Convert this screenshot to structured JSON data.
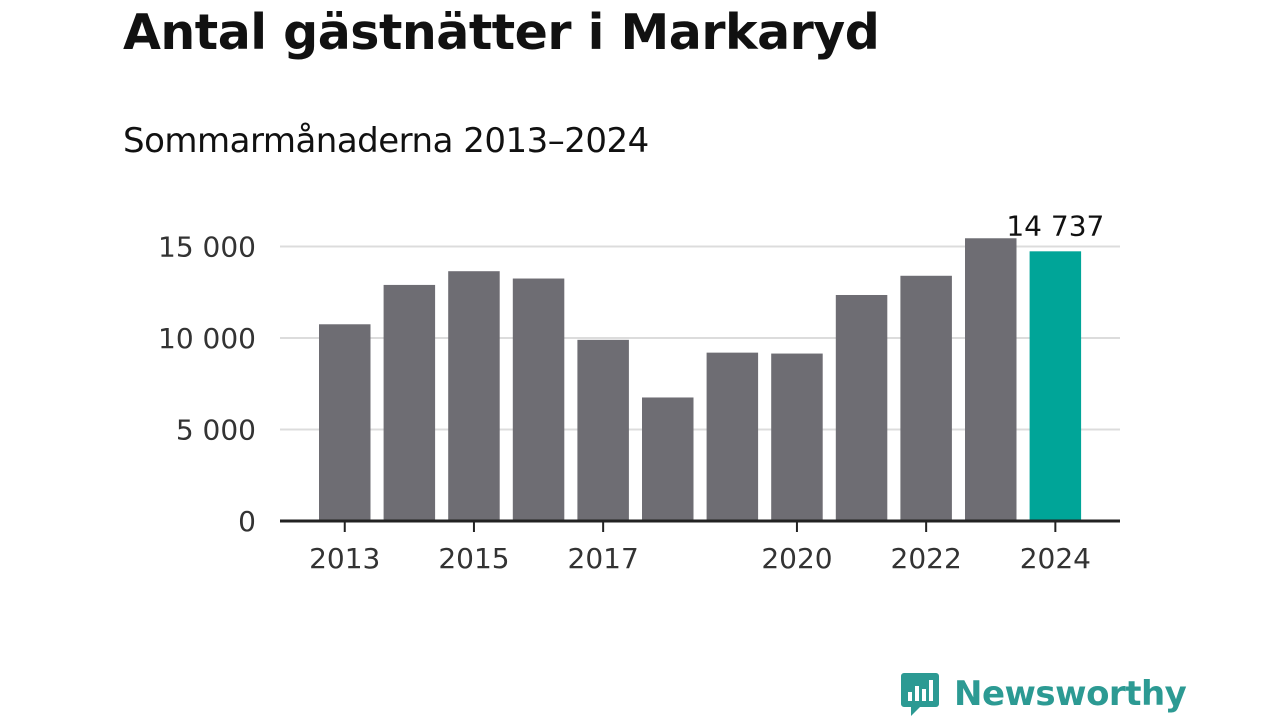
{
  "chart_data": {
    "type": "bar",
    "title": "Antal gästnätter i Markaryd",
    "subtitle": "Sommarmånaderna 2013–2024",
    "categories": [
      "2013",
      "2014",
      "2015",
      "2016",
      "2017",
      "2018",
      "2019",
      "2020",
      "2021",
      "2022",
      "2023",
      "2024"
    ],
    "values": [
      10750,
      12900,
      13650,
      13250,
      9900,
      6750,
      9200,
      9150,
      12350,
      13400,
      15450,
      14737
    ],
    "ylim": [
      0,
      15500
    ],
    "yticks": [
      0,
      5000,
      10000,
      15000
    ],
    "ytick_labels": [
      "0",
      "5 000",
      "10 000",
      "15 000"
    ],
    "xtick_labels": [
      "2013",
      "2015",
      "2017",
      "2020",
      "2022",
      "2024"
    ],
    "highlight": {
      "category": "2024",
      "label": "14 737"
    },
    "grid": true,
    "colors": {
      "bar": "#6e6d73",
      "highlight": "#00a598",
      "grid": "#dcdcdc",
      "axis": "#222222",
      "text": "#333333"
    }
  },
  "brand": {
    "name": "Newsworthy",
    "color": "#2c9a93"
  }
}
